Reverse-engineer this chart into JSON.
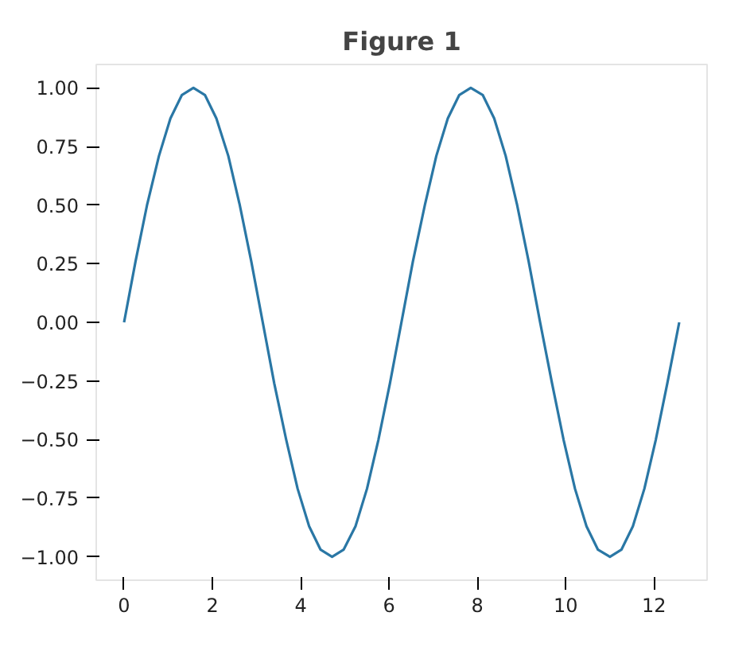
{
  "chart_data": {
    "type": "line",
    "title": "Figure 1",
    "x": [
      0,
      0.26,
      0.52,
      0.79,
      1.05,
      1.31,
      1.57,
      1.83,
      2.09,
      2.36,
      2.62,
      2.88,
      3.14,
      3.4,
      3.67,
      3.93,
      4.19,
      4.45,
      4.71,
      4.97,
      5.24,
      5.5,
      5.76,
      6.02,
      6.28,
      6.54,
      6.81,
      7.07,
      7.33,
      7.59,
      7.85,
      8.12,
      8.38,
      8.64,
      8.9,
      9.16,
      9.42,
      9.69,
      9.95,
      10.21,
      10.47,
      10.73,
      11.0,
      11.26,
      11.52,
      11.78,
      12.04,
      12.3,
      12.57
    ],
    "series": [
      {
        "color": "#2a77a5",
        "values": [
          0,
          0.26,
          0.5,
          0.71,
          0.87,
          0.97,
          1,
          0.97,
          0.87,
          0.71,
          0.5,
          0.26,
          0,
          -0.26,
          -0.5,
          -0.71,
          -0.87,
          -0.97,
          -1,
          -0.97,
          -0.87,
          -0.71,
          -0.5,
          -0.26,
          0,
          0.26,
          0.5,
          0.71,
          0.87,
          0.97,
          1,
          0.97,
          0.87,
          0.71,
          0.5,
          0.26,
          0,
          -0.26,
          -0.5,
          -0.71,
          -0.87,
          -0.97,
          -1,
          -0.97,
          -0.87,
          -0.71,
          -0.5,
          -0.26,
          0
        ]
      }
    ],
    "xlim": [
      -0.63,
      13.2
    ],
    "ylim": [
      -1.1,
      1.1
    ],
    "xticks": [
      0,
      2,
      4,
      6,
      8,
      10,
      12
    ],
    "yticks": [
      {
        "value": -1,
        "label": "−1.00"
      },
      {
        "value": -0.75,
        "label": "−0.75"
      },
      {
        "value": -0.5,
        "label": "−0.50"
      },
      {
        "value": -0.25,
        "label": "−0.25"
      },
      {
        "value": 0,
        "label": "0.00"
      },
      {
        "value": 0.25,
        "label": "0.25"
      },
      {
        "value": 0.5,
        "label": "0.50"
      },
      {
        "value": 0.75,
        "label": "0.75"
      },
      {
        "value": 1,
        "label": "1.00"
      }
    ],
    "grid": false
  }
}
